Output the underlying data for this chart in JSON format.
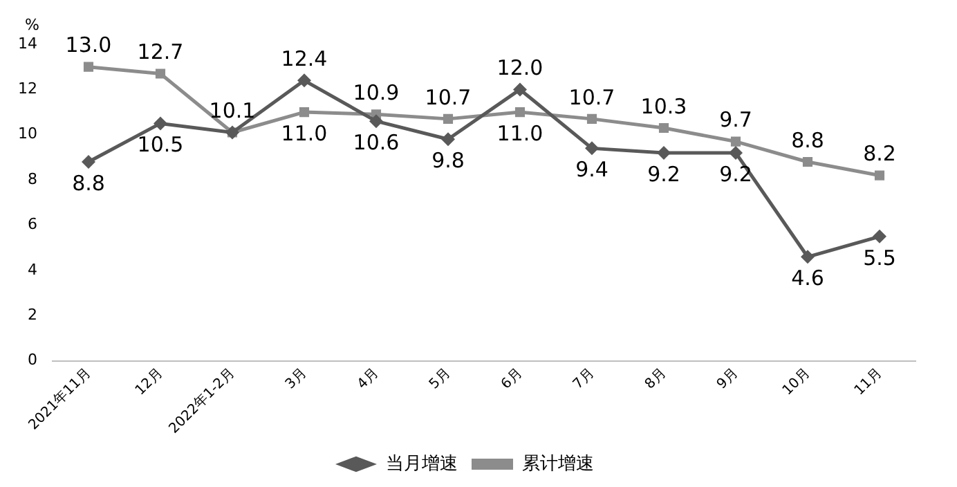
{
  "chart_data": {
    "type": "line",
    "ylabel": "%",
    "categories": [
      "2021年11月",
      "12月",
      "2022年1-2月",
      "3月",
      "4月",
      "5月",
      "6月",
      "7月",
      "8月",
      "9月",
      "10月",
      "11月"
    ],
    "series": [
      {
        "name": "当月增速",
        "color": "#595959",
        "marker": "diamond",
        "values": [
          8.8,
          10.5,
          10.1,
          12.4,
          10.6,
          9.8,
          12.0,
          9.4,
          9.2,
          9.2,
          4.6,
          5.5
        ],
        "value_labels": [
          "8.8",
          "10.5",
          null,
          "12.4",
          "10.6",
          "9.8",
          "12.0",
          "9.4",
          "9.2",
          "9.2",
          "4.6",
          "5.5"
        ]
      },
      {
        "name": "累计增速",
        "color": "#8c8c8c",
        "marker": "square",
        "values": [
          13.0,
          12.7,
          10.1,
          11.0,
          10.9,
          10.7,
          11.0,
          10.7,
          10.3,
          9.7,
          8.8,
          8.2
        ],
        "value_labels": [
          "13.0",
          "12.7",
          "10.1",
          "11.0",
          "10.9",
          "10.7",
          "11.0",
          "10.7",
          "10.3",
          "9.7",
          "8.8",
          "8.2"
        ]
      }
    ],
    "ylim": [
      0,
      14
    ],
    "yticks": [
      0,
      2,
      4,
      6,
      8,
      10,
      12,
      14
    ],
    "grid": false,
    "legend": "bottom",
    "line_style": "solid"
  }
}
